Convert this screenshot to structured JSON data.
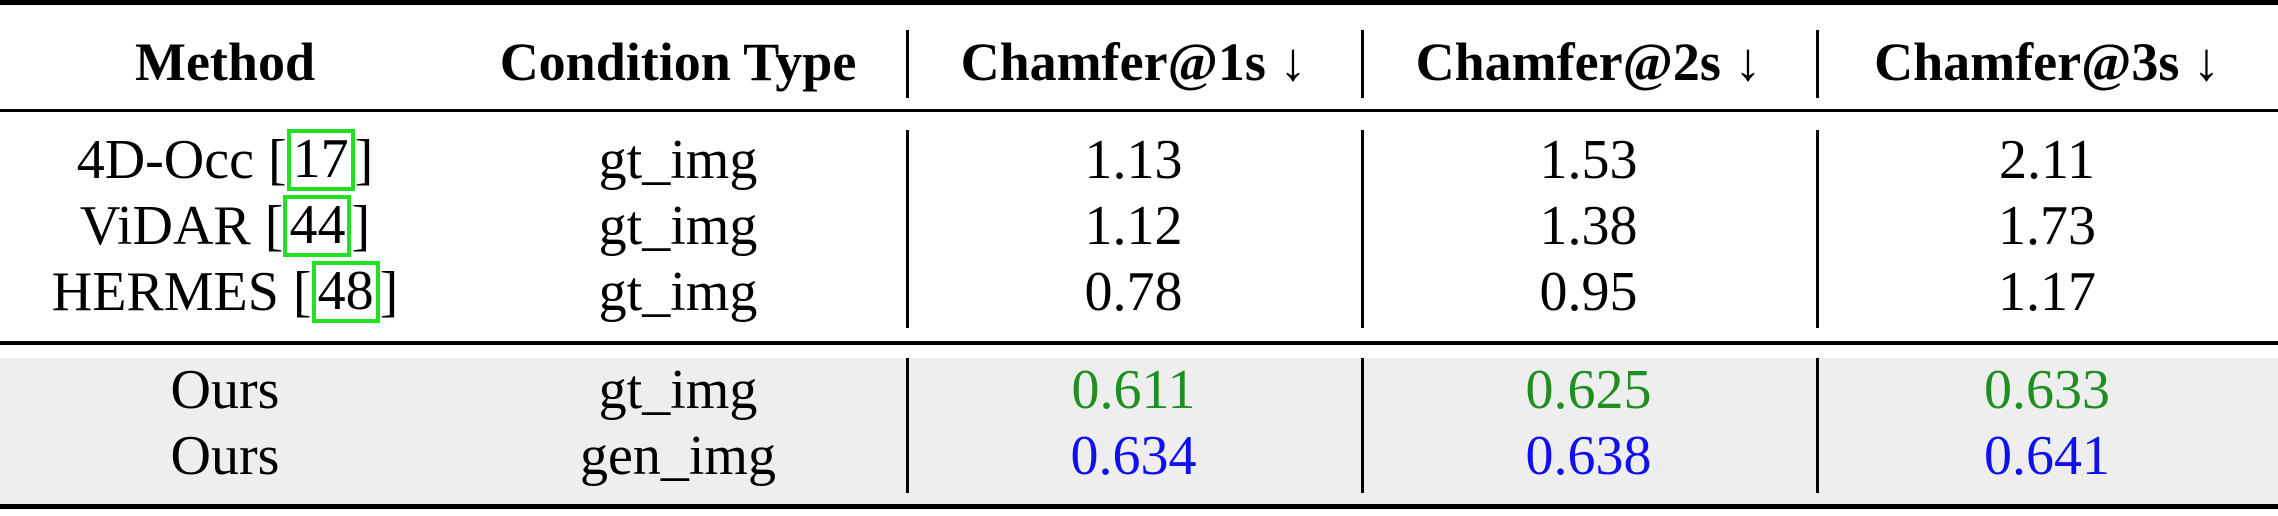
{
  "table": {
    "headers": [
      "Method",
      "Condition Type",
      "Chamfer@1s ↓",
      "Chamfer@2s ↓",
      "Chamfer@3s ↓"
    ],
    "baseline_rows": [
      {
        "method": "4D-Occ [",
        "cite": "17",
        "close": "]",
        "condition": "gt_img",
        "c1": "1.13",
        "c2": "1.53",
        "c3": "2.11"
      },
      {
        "method": "ViDAR [",
        "cite": "44",
        "close": "]",
        "condition": "gt_img",
        "c1": "1.12",
        "c2": "1.38",
        "c3": "1.73"
      },
      {
        "method": "HERMES [",
        "cite": "48",
        "close": "]",
        "condition": "gt_img",
        "c1": "0.78",
        "c2": "0.95",
        "c3": "1.17"
      }
    ],
    "ours_rows": [
      {
        "method": "Ours",
        "condition": "gt_img",
        "c1": "0.611",
        "c2": "0.625",
        "c3": "0.633",
        "color": "#1f8f1f"
      },
      {
        "method": "Ours",
        "condition": "gen_img",
        "c1": "0.634",
        "c2": "0.638",
        "c3": "0.641",
        "color": "#1010ee"
      }
    ]
  },
  "colors": {
    "best": "#1f8f1f",
    "second": "#1010ee",
    "citation_box": "#22e022",
    "ours_background": "#eeeeee"
  }
}
